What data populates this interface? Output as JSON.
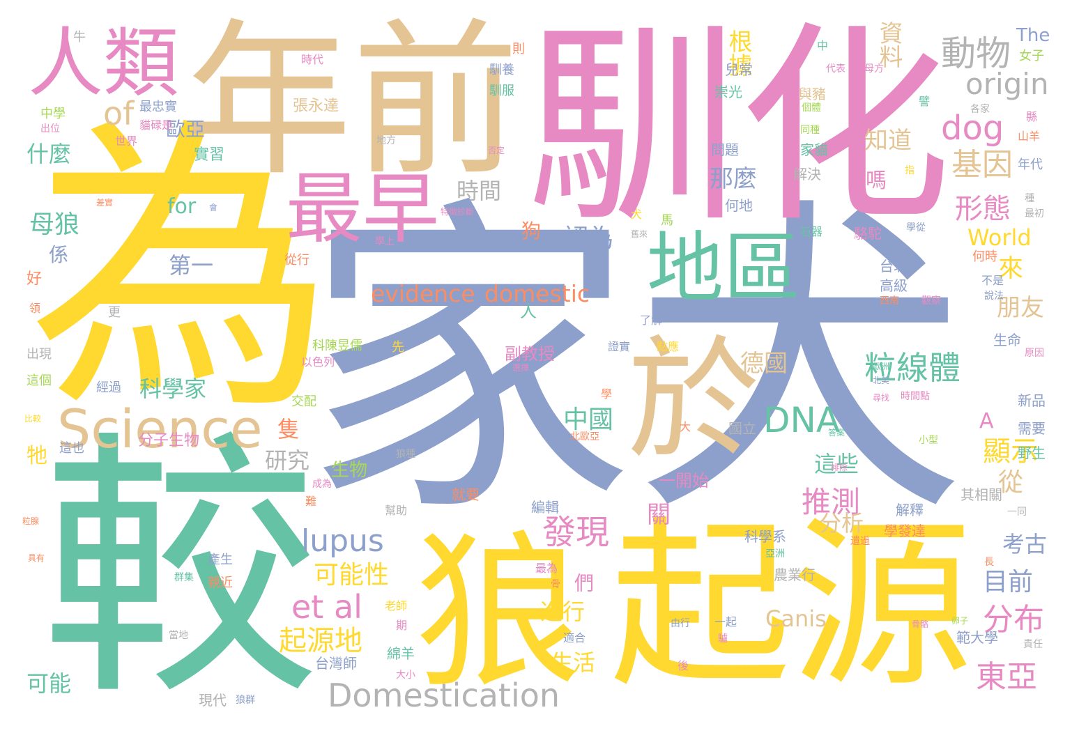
{
  "palette": {
    "green": "#66c2a5",
    "yellow": "#ffd92f",
    "pink": "#e78ac3",
    "blue": "#8da0cb",
    "tan": "#e5c494",
    "orange": "#fc8d62",
    "lime": "#a6d854",
    "grey": "#b3b3b3"
  },
  "words": [
    {
      "text": "為",
      "color": "yellow"
    },
    {
      "text": "家犬",
      "color": "blue"
    },
    {
      "text": "較",
      "color": "green"
    },
    {
      "text": "馴化",
      "color": "pink"
    },
    {
      "text": "年前",
      "color": "tan"
    },
    {
      "text": "起源",
      "color": "yellow"
    },
    {
      "text": "狼",
      "color": "yellow"
    },
    {
      "text": "於",
      "color": "tan"
    },
    {
      "text": "人類",
      "color": "pink"
    },
    {
      "text": "最早",
      "color": "pink"
    },
    {
      "text": "地區",
      "color": "green"
    },
    {
      "text": "Science",
      "color": "tan"
    },
    {
      "text": "Domestication",
      "color": "grey"
    },
    {
      "text": "evidence",
      "color": "orange"
    },
    {
      "text": "domestic",
      "color": "orange"
    },
    {
      "text": "dog",
      "color": "pink"
    },
    {
      "text": "origin",
      "color": "grey"
    },
    {
      "text": "動物",
      "color": "grey"
    },
    {
      "text": "of",
      "color": "tan"
    },
    {
      "text": "DNA",
      "color": "green"
    },
    {
      "text": "粒線體",
      "color": "green"
    },
    {
      "text": "lupus",
      "color": "blue"
    },
    {
      "text": "et al",
      "color": "pink"
    },
    {
      "text": "發現",
      "color": "pink"
    },
    {
      "text": "推測",
      "color": "pink"
    },
    {
      "text": "東亞",
      "color": "pink"
    },
    {
      "text": "分布",
      "color": "pink"
    },
    {
      "text": "基因",
      "color": "tan"
    },
    {
      "text": "形態",
      "color": "pink"
    },
    {
      "text": "顯示",
      "color": "yellow"
    },
    {
      "text": "資料",
      "color": "tan"
    },
    {
      "text": "根據",
      "color": "yellow"
    },
    {
      "text": "知道",
      "color": "tan"
    },
    {
      "text": "那麼",
      "color": "blue"
    },
    {
      "text": "時間",
      "color": "grey"
    },
    {
      "text": "認為",
      "color": "blue"
    },
    {
      "text": "來",
      "color": "yellow"
    },
    {
      "text": "朋友",
      "color": "tan"
    },
    {
      "text": "World",
      "color": "yellow"
    },
    {
      "text": "什麼",
      "color": "green"
    },
    {
      "text": "歐亞",
      "color": "blue"
    },
    {
      "text": "母狼",
      "color": "green"
    },
    {
      "text": "第一",
      "color": "blue"
    },
    {
      "text": "科學家",
      "color": "green"
    },
    {
      "text": "中國",
      "color": "green"
    },
    {
      "text": "可能性",
      "color": "yellow"
    },
    {
      "text": "起源地",
      "color": "yellow"
    },
    {
      "text": "德國",
      "color": "tan"
    },
    {
      "text": "研究",
      "color": "grey"
    },
    {
      "text": "分析",
      "color": "tan"
    },
    {
      "text": "考古",
      "color": "blue"
    },
    {
      "text": "目前",
      "color": "blue"
    },
    {
      "text": "Canis",
      "color": "tan"
    },
    {
      "text": "可能",
      "color": "green"
    },
    {
      "text": "生活",
      "color": "yellow"
    },
    {
      "text": "進行",
      "color": "yellow"
    },
    {
      "text": "這些",
      "color": "green"
    },
    {
      "text": "從",
      "color": "tan"
    },
    {
      "text": "for",
      "color": "green"
    },
    {
      "text": "狗",
      "color": "orange"
    },
    {
      "text": "人",
      "color": "green"
    },
    {
      "text": "嗎",
      "color": "pink"
    },
    {
      "text": "隻",
      "color": "orange"
    },
    {
      "text": "A",
      "color": "pink"
    },
    {
      "text": "牠",
      "color": "yellow"
    },
    {
      "text": "係",
      "color": "blue"
    },
    {
      "text": "們",
      "color": "pink"
    },
    {
      "text": "關",
      "color": "pink"
    },
    {
      "text": "生物",
      "color": "lime"
    },
    {
      "text": "分子生物",
      "color": "pink"
    },
    {
      "text": "副教授",
      "color": "pink"
    },
    {
      "text": "一開始",
      "color": "pink"
    },
    {
      "text": "張永達",
      "color": "tan"
    },
    {
      "text": "實習",
      "color": "green"
    },
    {
      "text": "最忠實",
      "color": "blue"
    },
    {
      "text": "科陳昱儒",
      "color": "lime"
    },
    {
      "text": "經過",
      "color": "blue"
    },
    {
      "text": "台灣師",
      "color": "blue"
    },
    {
      "text": "綿羊",
      "color": "green"
    },
    {
      "text": "現代",
      "color": "grey"
    },
    {
      "text": "編輯",
      "color": "blue"
    },
    {
      "text": "就要",
      "color": "orange"
    },
    {
      "text": "科學系",
      "color": "blue"
    },
    {
      "text": "農業行",
      "color": "grey"
    },
    {
      "text": "範大學",
      "color": "blue"
    },
    {
      "text": "其相關",
      "color": "grey"
    },
    {
      "text": "學發達",
      "color": "orange"
    },
    {
      "text": "解釋",
      "color": "blue"
    },
    {
      "text": "新品",
      "color": "blue"
    },
    {
      "text": "需要",
      "color": "blue"
    },
    {
      "text": "野生",
      "color": "green"
    },
    {
      "text": "生命",
      "color": "blue"
    },
    {
      "text": "台北",
      "color": "blue"
    },
    {
      "text": "高級",
      "color": "blue"
    },
    {
      "text": "駱駝",
      "color": "pink"
    },
    {
      "text": "何時",
      "color": "orange"
    },
    {
      "text": "何地",
      "color": "blue"
    },
    {
      "text": "問題",
      "color": "blue"
    },
    {
      "text": "家貓",
      "color": "green"
    },
    {
      "text": "解決",
      "color": "grey"
    },
    {
      "text": "與豬",
      "color": "tan"
    },
    {
      "text": "兒常",
      "color": "blue"
    },
    {
      "text": "崇光",
      "color": "green"
    },
    {
      "text": "年代",
      "color": "blue"
    },
    {
      "text": "山羊",
      "color": "orange"
    },
    {
      "text": "女子",
      "color": "lime"
    },
    {
      "text": "The",
      "color": "blue"
    },
    {
      "text": "國立",
      "color": "grey"
    },
    {
      "text": "育種",
      "color": "blue"
    },
    {
      "text": "產生",
      "color": "blue"
    },
    {
      "text": "親近",
      "color": "orange"
    },
    {
      "text": "以色列",
      "color": "pink"
    },
    {
      "text": "交配",
      "color": "lime"
    },
    {
      "text": "從行",
      "color": "orange"
    },
    {
      "text": "好",
      "color": "orange"
    },
    {
      "text": "更",
      "color": "grey"
    },
    {
      "text": "出現",
      "color": "grey"
    },
    {
      "text": "這個",
      "color": "lime"
    },
    {
      "text": "這也",
      "color": "blue"
    },
    {
      "text": "中學",
      "color": "lime"
    },
    {
      "text": "時代",
      "color": "pink"
    },
    {
      "text": "則",
      "color": "orange"
    },
    {
      "text": "牛",
      "color": "grey"
    },
    {
      "text": "馴養",
      "color": "blue"
    },
    {
      "text": "馴服",
      "color": "green"
    },
    {
      "text": "中",
      "color": "green"
    },
    {
      "text": "代表",
      "color": "pink"
    },
    {
      "text": "母方",
      "color": "pink"
    },
    {
      "text": "各家",
      "color": "grey"
    },
    {
      "text": "個體",
      "color": "lime"
    },
    {
      "text": "同種",
      "color": "lime"
    },
    {
      "text": "犬",
      "color": "yellow"
    },
    {
      "text": "馬",
      "color": "lime"
    },
    {
      "text": "石器",
      "color": "green"
    },
    {
      "text": "學從",
      "color": "blue"
    },
    {
      "text": "最初",
      "color": "grey"
    },
    {
      "text": "不是",
      "color": "blue"
    },
    {
      "text": "說法",
      "color": "blue"
    },
    {
      "text": "西南",
      "color": "orange"
    },
    {
      "text": "觀察",
      "color": "pink"
    },
    {
      "text": "了解",
      "color": "blue"
    },
    {
      "text": "證實",
      "color": "blue"
    },
    {
      "text": "點應",
      "color": "yellow"
    },
    {
      "text": "先",
      "color": "yellow"
    },
    {
      "text": "學",
      "color": "orange"
    },
    {
      "text": "大",
      "color": "orange"
    },
    {
      "text": "答案",
      "color": "green"
    },
    {
      "text": "小型",
      "color": "lime"
    },
    {
      "text": "北歐亞",
      "color": "orange"
    },
    {
      "text": "狼種",
      "color": "grey"
    },
    {
      "text": "成為",
      "color": "pink"
    },
    {
      "text": "難",
      "color": "orange"
    },
    {
      "text": "幫助",
      "color": "grey"
    },
    {
      "text": "亞洲",
      "color": "green"
    },
    {
      "text": "遺過",
      "color": "orange"
    },
    {
      "text": "最為",
      "color": "pink"
    },
    {
      "text": "骨",
      "color": "orange"
    },
    {
      "text": "老師",
      "color": "yellow"
    },
    {
      "text": "期",
      "color": "pink"
    },
    {
      "text": "大小",
      "color": "pink"
    },
    {
      "text": "狼群",
      "color": "blue"
    },
    {
      "text": "當地",
      "color": "grey"
    },
    {
      "text": "群集",
      "color": "green"
    },
    {
      "text": "具有",
      "color": "orange"
    },
    {
      "text": "粒腺",
      "color": "orange"
    },
    {
      "text": "比較",
      "color": "yellow"
    },
    {
      "text": "領",
      "color": "orange"
    },
    {
      "text": "世界",
      "color": "pink"
    },
    {
      "text": "出位",
      "color": "pink"
    },
    {
      "text": "貓碌是",
      "color": "pink"
    },
    {
      "text": "會",
      "color": "blue"
    },
    {
      "text": "差實",
      "color": "orange"
    },
    {
      "text": "地方",
      "color": "grey"
    },
    {
      "text": "否定",
      "color": "pink"
    },
    {
      "text": "特徵診斷",
      "color": "pink"
    },
    {
      "text": "學上",
      "color": "pink"
    },
    {
      "text": "農場",
      "color": "blue"
    },
    {
      "text": "舊來",
      "color": "grey"
    },
    {
      "text": "選擇",
      "color": "pink"
    },
    {
      "text": "歐洲",
      "color": "green"
    },
    {
      "text": "北美",
      "color": "blue"
    },
    {
      "text": "原因",
      "color": "pink"
    },
    {
      "text": "尋找",
      "color": "pink"
    },
    {
      "text": "時間點",
      "color": "pink"
    },
    {
      "text": "種",
      "color": "grey"
    },
    {
      "text": "一起",
      "color": "blue"
    },
    {
      "text": "由行",
      "color": "blue"
    },
    {
      "text": "後",
      "color": "pink"
    },
    {
      "text": "驢",
      "color": "pink"
    },
    {
      "text": "適合",
      "color": "blue"
    },
    {
      "text": "卵子",
      "color": "lime"
    },
    {
      "text": "骨骼",
      "color": "pink"
    },
    {
      "text": "責任",
      "color": "grey"
    },
    {
      "text": "長",
      "color": "orange"
    },
    {
      "text": "一同",
      "color": "grey"
    },
    {
      "text": "排除",
      "color": "pink"
    },
    {
      "text": "指",
      "color": "yellow"
    },
    {
      "text": "縣",
      "color": "pink"
    },
    {
      "text": "譬",
      "color": "green"
    }
  ]
}
